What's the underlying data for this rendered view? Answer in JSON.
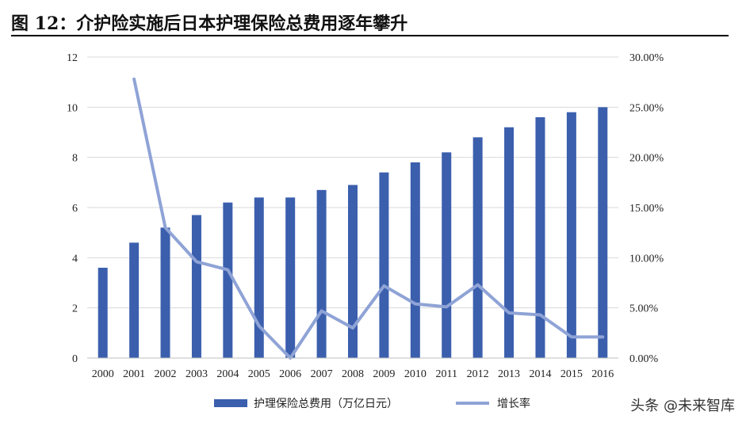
{
  "figure": {
    "title": "图 12：介护险实施后日本护理保险总费用逐年攀升"
  },
  "watermark": "头条 @未来智库",
  "colors": {
    "bar": "#3b5fad",
    "line": "#8fa3d6",
    "grid": "#d9d9d9"
  },
  "chart_data": {
    "type": "bar+line",
    "title": "",
    "categories": [
      "2000",
      "2001",
      "2002",
      "2003",
      "2004",
      "2005",
      "2006",
      "2007",
      "2008",
      "2009",
      "2010",
      "2011",
      "2012",
      "2013",
      "2014",
      "2015",
      "2016"
    ],
    "series": [
      {
        "name": "护理保险总费用（万亿日元）",
        "type": "bar",
        "axis": "left",
        "values": [
          3.6,
          4.6,
          5.2,
          5.7,
          6.2,
          6.4,
          6.4,
          6.7,
          6.9,
          7.4,
          7.8,
          8.2,
          8.8,
          9.2,
          9.6,
          9.8,
          10.0
        ]
      },
      {
        "name": "增长率",
        "type": "line",
        "axis": "right",
        "values": [
          null,
          27.8,
          13.0,
          9.6,
          8.8,
          3.2,
          0.0,
          4.7,
          3.0,
          7.2,
          5.4,
          5.1,
          7.3,
          4.5,
          4.3,
          2.1,
          2.1
        ]
      }
    ],
    "y_left": {
      "min": 0,
      "max": 12,
      "ticks": [
        "0",
        "2",
        "4",
        "6",
        "8",
        "10",
        "12"
      ]
    },
    "y_right": {
      "min": 0,
      "max": 30,
      "ticks": [
        "0.00%",
        "5.00%",
        "10.00%",
        "15.00%",
        "20.00%",
        "25.00%",
        "30.00%"
      ]
    },
    "grid": true,
    "legend_position": "bottom"
  }
}
